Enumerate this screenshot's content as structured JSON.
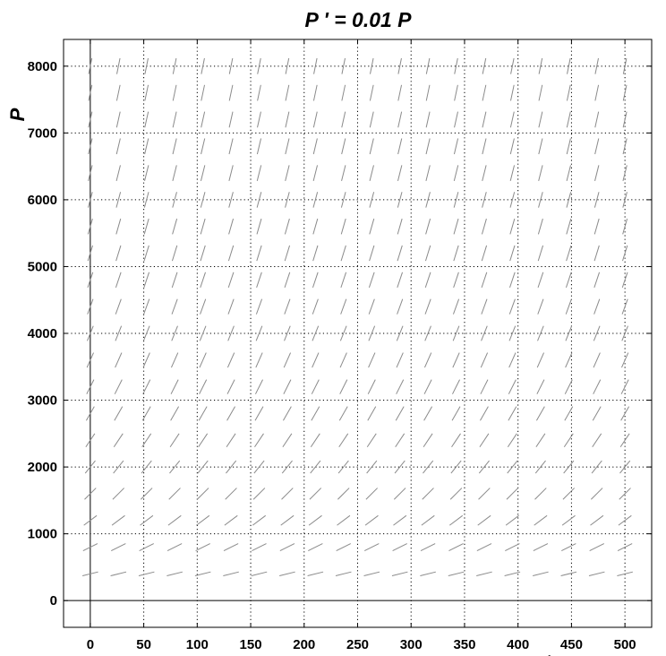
{
  "chart_data": {
    "type": "slope-field",
    "title": "P ' = 0.01 P",
    "xlabel": "t",
    "ylabel": "P",
    "xlim": [
      -25,
      525
    ],
    "ylim": [
      -400,
      8400
    ],
    "x_ticks": [
      0,
      50,
      100,
      150,
      200,
      250,
      300,
      350,
      400,
      450,
      500
    ],
    "y_ticks": [
      0,
      1000,
      2000,
      3000,
      4000,
      5000,
      6000,
      7000,
      8000
    ],
    "grid": true,
    "field": {
      "rate": 0.01,
      "t_values": [
        0,
        26.3,
        52.6,
        78.9,
        105.3,
        131.6,
        157.9,
        184.2,
        210.5,
        236.8,
        263.2,
        289.5,
        315.8,
        342.1,
        368.4,
        394.7,
        421.1,
        447.4,
        473.7,
        500
      ],
      "p_values": [
        400,
        800,
        1200,
        1600,
        2000,
        2400,
        2800,
        3200,
        3600,
        4000,
        4400,
        4800,
        5200,
        5600,
        6000,
        6400,
        6800,
        7200,
        7600,
        8000
      ]
    }
  }
}
